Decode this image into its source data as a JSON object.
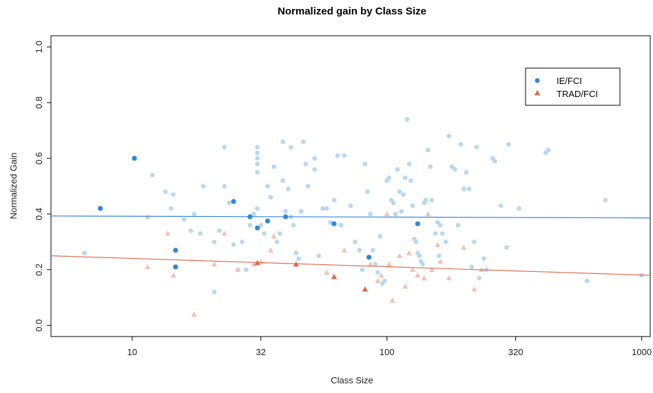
{
  "chart_data": {
    "type": "scatter",
    "title": "Normalized gain by Class Size",
    "xlabel": "Class Size",
    "ylabel": "Normalized Gain",
    "x_scale": "log",
    "xlim": [
      4.8,
      1080
    ],
    "ylim": [
      -0.04,
      1.04
    ],
    "x_ticks": [
      10,
      32,
      100,
      320,
      1000
    ],
    "y_ticks": [
      0.0,
      0.2,
      0.4,
      0.6,
      0.8,
      1.0
    ],
    "grid": false,
    "legend_position": "top-right",
    "series": [
      {
        "name": "IE/FCI",
        "color": "#2E86DE",
        "light_color": "#B7D8F2",
        "marker": "circle",
        "trend": {
          "x": [
            4.8,
            1080
          ],
          "y": [
            0.393,
            0.386
          ]
        },
        "points_highlighted": [
          [
            7.5,
            0.42
          ],
          [
            10.2,
            0.6
          ],
          [
            14.8,
            0.27
          ],
          [
            14.8,
            0.21
          ],
          [
            25,
            0.445
          ],
          [
            29,
            0.39
          ],
          [
            31,
            0.35
          ],
          [
            34,
            0.375
          ],
          [
            40,
            0.39
          ],
          [
            62,
            0.365
          ],
          [
            85,
            0.245
          ],
          [
            132,
            0.365
          ]
        ],
        "points": [
          [
            6.5,
            0.26
          ],
          [
            12,
            0.54
          ],
          [
            13.5,
            0.48
          ],
          [
            14.5,
            0.47
          ],
          [
            14.2,
            0.42
          ],
          [
            16,
            0.38
          ],
          [
            17,
            0.34
          ],
          [
            17.5,
            0.4
          ],
          [
            18.5,
            0.33
          ],
          [
            19,
            0.5
          ],
          [
            21,
            0.3
          ],
          [
            21,
            0.12
          ],
          [
            22,
            0.34
          ],
          [
            23,
            0.64
          ],
          [
            23,
            0.5
          ],
          [
            24,
            0.44
          ],
          [
            25,
            0.29
          ],
          [
            26,
            0.2
          ],
          [
            27,
            0.3
          ],
          [
            28,
            0.2
          ],
          [
            29,
            0.36
          ],
          [
            30,
            0.4
          ],
          [
            31,
            0.64
          ],
          [
            31,
            0.62
          ],
          [
            31,
            0.6
          ],
          [
            31,
            0.58
          ],
          [
            31,
            0.55
          ],
          [
            31,
            0.42
          ],
          [
            32,
            0.36
          ],
          [
            33,
            0.33
          ],
          [
            34,
            0.5
          ],
          [
            35,
            0.46
          ],
          [
            36,
            0.57
          ],
          [
            37,
            0.3
          ],
          [
            38,
            0.33
          ],
          [
            39,
            0.66
          ],
          [
            39,
            0.52
          ],
          [
            40,
            0.41
          ],
          [
            41,
            0.49
          ],
          [
            42,
            0.64
          ],
          [
            42,
            0.39
          ],
          [
            43,
            0.36
          ],
          [
            44,
            0.26
          ],
          [
            45,
            0.24
          ],
          [
            46,
            0.41
          ],
          [
            47,
            0.66
          ],
          [
            48,
            0.58
          ],
          [
            49,
            0.5
          ],
          [
            52,
            0.56
          ],
          [
            52,
            0.6
          ],
          [
            54,
            0.25
          ],
          [
            56,
            0.42
          ],
          [
            58,
            0.42
          ],
          [
            60,
            0.37
          ],
          [
            62,
            0.45
          ],
          [
            64,
            0.61
          ],
          [
            66,
            0.36
          ],
          [
            68,
            0.61
          ],
          [
            72,
            0.43
          ],
          [
            75,
            0.3
          ],
          [
            78,
            0.27
          ],
          [
            80,
            0.2
          ],
          [
            82,
            0.58
          ],
          [
            84,
            0.48
          ],
          [
            86,
            0.4
          ],
          [
            88,
            0.27
          ],
          [
            90,
            0.22
          ],
          [
            92,
            0.19
          ],
          [
            94,
            0.32
          ],
          [
            96,
            0.15
          ],
          [
            98,
            0.16
          ],
          [
            100,
            0.52
          ],
          [
            102,
            0.53
          ],
          [
            104,
            0.45
          ],
          [
            106,
            0.44
          ],
          [
            108,
            0.4
          ],
          [
            110,
            0.56
          ],
          [
            112,
            0.48
          ],
          [
            114,
            0.41
          ],
          [
            116,
            0.47
          ],
          [
            118,
            0.53
          ],
          [
            120,
            0.74
          ],
          [
            122,
            0.58
          ],
          [
            124,
            0.52
          ],
          [
            126,
            0.43
          ],
          [
            128,
            0.31
          ],
          [
            130,
            0.3
          ],
          [
            132,
            0.26
          ],
          [
            134,
            0.25
          ],
          [
            136,
            0.23
          ],
          [
            138,
            0.22
          ],
          [
            140,
            0.44
          ],
          [
            142,
            0.45
          ],
          [
            145,
            0.63
          ],
          [
            148,
            0.57
          ],
          [
            150,
            0.45
          ],
          [
            155,
            0.33
          ],
          [
            158,
            0.37
          ],
          [
            160,
            0.25
          ],
          [
            162,
            0.36
          ],
          [
            165,
            0.33
          ],
          [
            170,
            0.3
          ],
          [
            175,
            0.68
          ],
          [
            180,
            0.57
          ],
          [
            185,
            0.56
          ],
          [
            190,
            0.36
          ],
          [
            195,
            0.65
          ],
          [
            200,
            0.49
          ],
          [
            205,
            0.55
          ],
          [
            210,
            0.49
          ],
          [
            215,
            0.21
          ],
          [
            220,
            0.3
          ],
          [
            225,
            0.64
          ],
          [
            230,
            0.17
          ],
          [
            240,
            0.24
          ],
          [
            245,
            0.2
          ],
          [
            260,
            0.6
          ],
          [
            265,
            0.59
          ],
          [
            280,
            0.43
          ],
          [
            295,
            0.28
          ],
          [
            300,
            0.65
          ],
          [
            330,
            0.42
          ],
          [
            420,
            0.62
          ],
          [
            430,
            0.63
          ],
          [
            610,
            0.16
          ],
          [
            720,
            0.45
          ],
          [
            1000,
            0.18
          ]
        ]
      },
      {
        "name": "TRAD/FCI",
        "color": "#E06A4C",
        "light_color": "#F5BFB0",
        "marker": "triangle",
        "trend": {
          "x": [
            4.8,
            1080
          ],
          "y": [
            0.25,
            0.18
          ]
        },
        "points_highlighted": [
          [
            31,
            0.225
          ],
          [
            44,
            0.22
          ],
          [
            62,
            0.175
          ],
          [
            82,
            0.13
          ]
        ],
        "points": [
          [
            11.5,
            0.21
          ],
          [
            11.5,
            0.39
          ],
          [
            13.8,
            0.33
          ],
          [
            14.5,
            0.18
          ],
          [
            17.5,
            0.04
          ],
          [
            21,
            0.22
          ],
          [
            23,
            0.33
          ],
          [
            26,
            0.2
          ],
          [
            30,
            0.22
          ],
          [
            32,
            0.23
          ],
          [
            35,
            0.27
          ],
          [
            36,
            0.32
          ],
          [
            58,
            0.19
          ],
          [
            68,
            0.27
          ],
          [
            86,
            0.22
          ],
          [
            92,
            0.16
          ],
          [
            95,
            0.18
          ],
          [
            100,
            0.4
          ],
          [
            102,
            0.22
          ],
          [
            105,
            0.09
          ],
          [
            112,
            0.25
          ],
          [
            118,
            0.14
          ],
          [
            122,
            0.26
          ],
          [
            126,
            0.2
          ],
          [
            132,
            0.18
          ],
          [
            140,
            0.17
          ],
          [
            145,
            0.4
          ],
          [
            150,
            0.2
          ],
          [
            158,
            0.29
          ],
          [
            162,
            0.23
          ],
          [
            175,
            0.17
          ],
          [
            200,
            0.28
          ],
          [
            220,
            0.13
          ],
          [
            235,
            0.2
          ]
        ]
      }
    ]
  }
}
